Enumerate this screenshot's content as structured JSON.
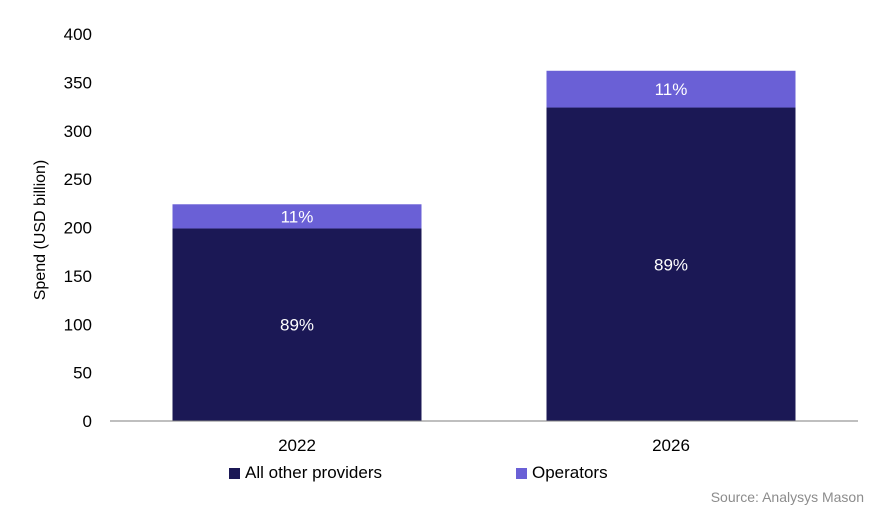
{
  "chart_data": {
    "type": "bar",
    "stacked": true,
    "categories": [
      "2022",
      "2026"
    ],
    "series": [
      {
        "name": "All other providers",
        "values": [
          199,
          324
        ],
        "labels": [
          "89%",
          "89%"
        ],
        "color": "#1b1855"
      },
      {
        "name": "Operators",
        "values": [
          25,
          38
        ],
        "labels": [
          "11%",
          "11%"
        ],
        "color": "#6a60d6"
      }
    ],
    "ylabel": "Spend (USD billion)",
    "ylim": [
      0,
      400
    ],
    "yticks": [
      "0",
      "50",
      "100",
      "150",
      "200",
      "250",
      "300",
      "350",
      "400"
    ],
    "grid": false,
    "legend_position": "bottom"
  },
  "source": "Source: Analysys Mason"
}
